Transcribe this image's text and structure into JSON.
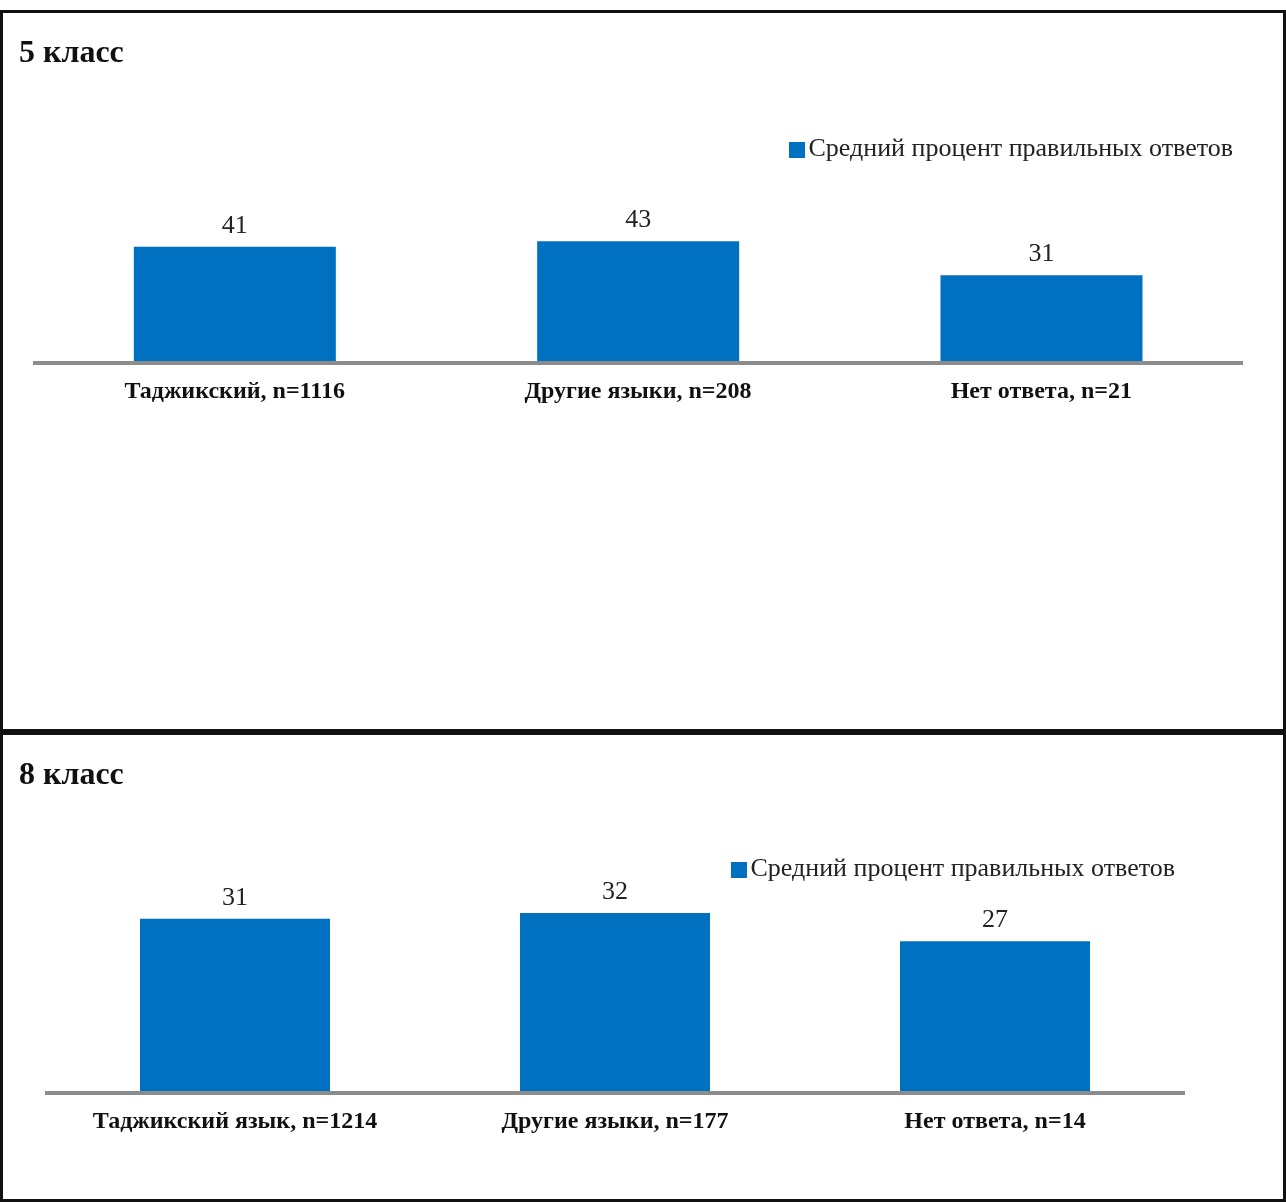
{
  "chart_data": [
    {
      "type": "bar",
      "title": "5 класс",
      "categories": [
        "Таджикский, n=1116",
        "Другие языки, n=208",
        "Нет ответа, n=21"
      ],
      "series": [
        {
          "name": "Средний процент правильных ответов",
          "color": "#0070c0",
          "values": [
            41,
            43,
            31
          ]
        }
      ],
      "data_labels": true,
      "legend": "top right"
    },
    {
      "type": "bar",
      "title": "8 класс",
      "categories": [
        "Таджикский язык, n=1214",
        "Другие языки, n=177",
        "Нет ответа, n=14"
      ],
      "series": [
        {
          "name": "Средний процент правильных ответов",
          "color": "#0070c0",
          "values": [
            31,
            32,
            27
          ]
        }
      ],
      "data_labels": true,
      "legend": "top right"
    }
  ]
}
